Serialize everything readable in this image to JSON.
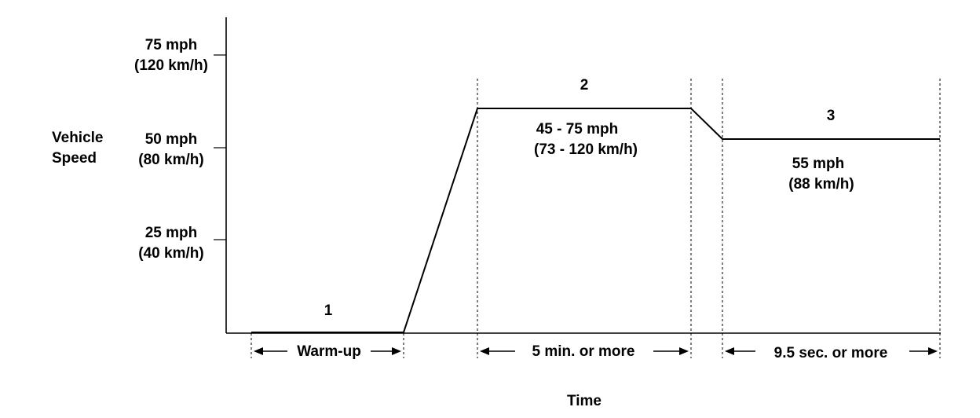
{
  "y_axis": {
    "label_line1": "Vehicle",
    "label_line2": "Speed",
    "ticks": [
      {
        "mph": "75 mph",
        "kmh": "(120 km/h)"
      },
      {
        "mph": "50 mph",
        "kmh": "(80 km/h)"
      },
      {
        "mph": "25 mph",
        "kmh": "(40 km/h)"
      }
    ]
  },
  "x_axis": {
    "label": "Time"
  },
  "phases": [
    {
      "number": "1",
      "duration": "Warm-up"
    },
    {
      "number": "2",
      "speed_line1": "45 - 75 mph",
      "speed_line2": "(73 - 120 km/h)",
      "duration": "5 min. or more"
    },
    {
      "number": "3",
      "speed_line1": "55 mph",
      "speed_line2": "(88 km/h)",
      "duration": "9.5 sec. or more"
    }
  ]
}
